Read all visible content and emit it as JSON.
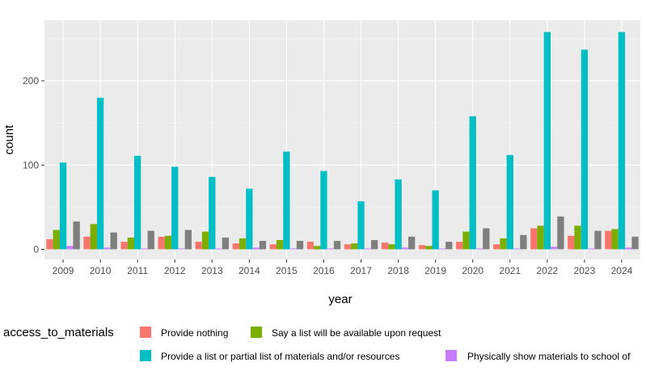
{
  "chart_data": {
    "type": "bar",
    "xlabel": "year",
    "ylabel": "count",
    "ylim": [
      -12,
      272
    ],
    "yticks": [
      0,
      100,
      200
    ],
    "grid": true,
    "legend_title": "access_to_materials",
    "legend_position": "bottom",
    "categories": [
      "2009",
      "2010",
      "2011",
      "2012",
      "2013",
      "2014",
      "2015",
      "2016",
      "2017",
      "2018",
      "2019",
      "2020",
      "2021",
      "2022",
      "2023",
      "2024"
    ],
    "series": [
      {
        "name": "Provide nothing",
        "color": "#F8766D",
        "values": [
          12,
          15,
          9,
          15,
          9,
          7,
          6,
          9,
          6,
          8,
          5,
          9,
          6,
          25,
          16,
          22
        ]
      },
      {
        "name": "Say a list will be available upon request",
        "color": "#7CAE00",
        "values": [
          23,
          30,
          14,
          16,
          21,
          13,
          11,
          4,
          7,
          6,
          4,
          21,
          13,
          28,
          28,
          24
        ]
      },
      {
        "name": "Provide a list or partial list of materials and/or resources",
        "color": "#00BFC4",
        "values": [
          103,
          180,
          111,
          98,
          86,
          72,
          116,
          93,
          57,
          83,
          70,
          158,
          112,
          258,
          237,
          258
        ]
      },
      {
        "name": "Physically show materials to school of",
        "color": "#C77CFF",
        "values": [
          4,
          2,
          1,
          1,
          1,
          2,
          1,
          1,
          1,
          2,
          1,
          1,
          1,
          3,
          1,
          2
        ]
      },
      {
        "name": "",
        "color": "#7F7F7F",
        "values": [
          33,
          20,
          22,
          23,
          14,
          10,
          10,
          10,
          11,
          15,
          9,
          25,
          17,
          39,
          22,
          15
        ]
      }
    ]
  }
}
